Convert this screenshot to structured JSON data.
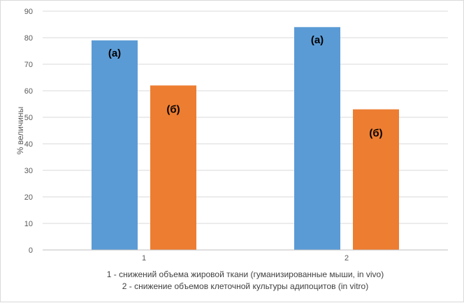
{
  "chart_data": {
    "type": "bar",
    "categories": [
      "1",
      "2"
    ],
    "series": [
      {
        "values": [
          79,
          84
        ],
        "color": "#5b9bd5",
        "bar_label": "(а)"
      },
      {
        "values": [
          62,
          53
        ],
        "color": "#ed7d31",
        "bar_label": "(б)"
      }
    ],
    "ylabel": "% величины",
    "xlabel_lines": [
      "1 - снижений объема жировой ткани (гуманизированные мыши, in vivo)",
      "2 - снижение объемов клеточной культуры адипоцитов (in vitro)"
    ],
    "ylim": [
      0,
      90
    ],
    "yticks": [
      0,
      10,
      20,
      30,
      40,
      50,
      60,
      70,
      80,
      90
    ],
    "grid": true,
    "gridline_color": "#d9d9d9"
  }
}
